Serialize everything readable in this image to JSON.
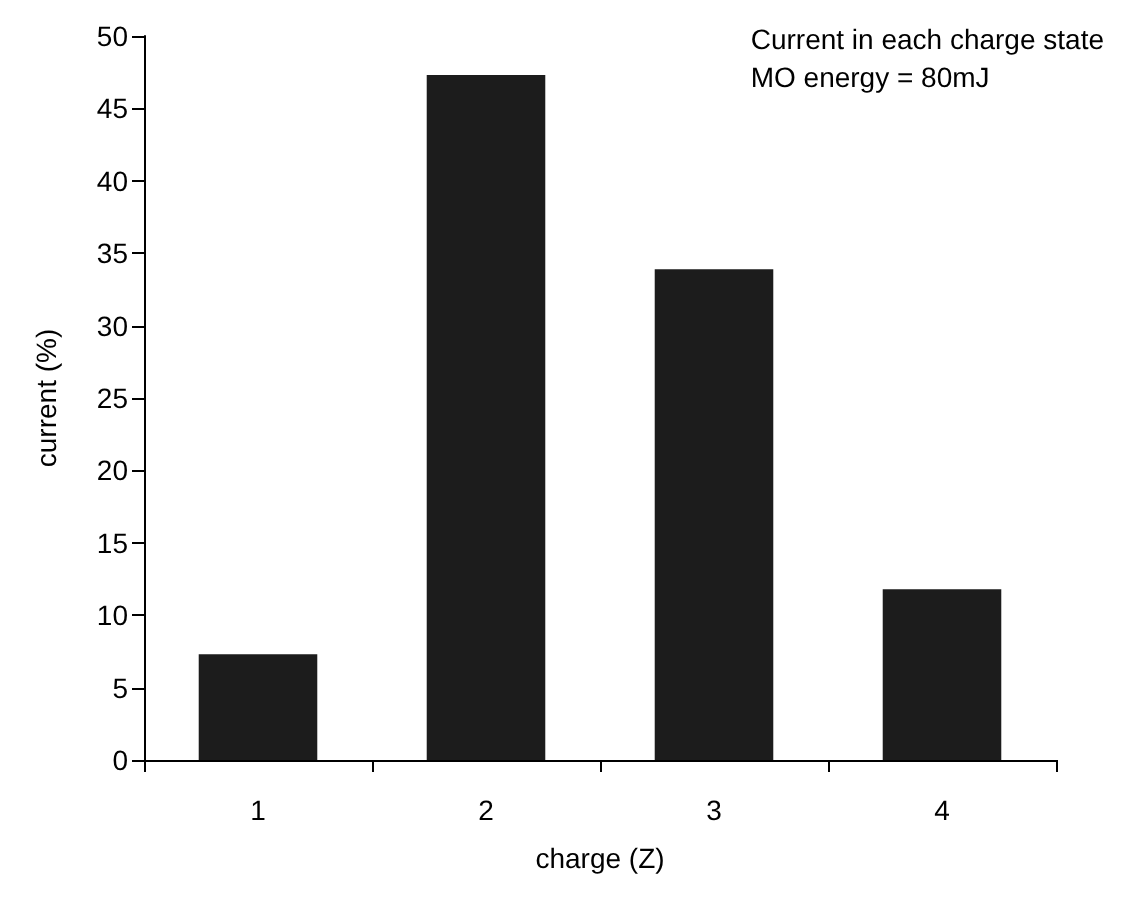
{
  "chart_data": {
    "type": "bar",
    "xlabel": "charge (Z)",
    "ylabel": "current (%)",
    "annotations": [
      "Current in each charge state",
      "MO energy = 80mJ"
    ],
    "categories": [
      "1",
      "2",
      "3",
      "4"
    ],
    "values": [
      7.3,
      47.3,
      33.9,
      11.8
    ],
    "color": "#1c1c1c",
    "ylim": [
      0,
      50
    ],
    "yticks": [
      0,
      5,
      10,
      15,
      20,
      25,
      30,
      35,
      40,
      45,
      50
    ],
    "grid": false
  }
}
